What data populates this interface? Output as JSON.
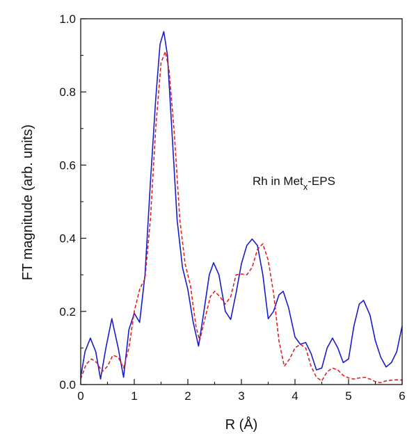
{
  "chart_data": {
    "type": "line",
    "title": "",
    "xlabel": "R (Å)",
    "ylabel": "FT magnitude (arb. units)",
    "xlim": [
      0,
      6
    ],
    "ylim": [
      0,
      1.0
    ],
    "x_ticks": [
      "0",
      "1",
      "2",
      "3",
      "4",
      "5",
      "6"
    ],
    "y_ticks": [
      "0.0",
      "0.2",
      "0.4",
      "0.6",
      "0.8",
      "1.0"
    ],
    "annotation": {
      "main": "Rh in Met",
      "sub": "x",
      "tail": "-EPS"
    },
    "grid": false,
    "legend": "none",
    "series": [
      {
        "style": "solid",
        "color": "#1a1acc",
        "x": [
          0,
          0.08,
          0.18,
          0.28,
          0.37,
          0.47,
          0.58,
          0.7,
          0.8,
          0.9,
          1.0,
          1.1,
          1.2,
          1.3,
          1.4,
          1.48,
          1.55,
          1.62,
          1.7,
          1.8,
          1.9,
          2.0,
          2.1,
          2.2,
          2.3,
          2.4,
          2.48,
          2.58,
          2.7,
          2.8,
          2.9,
          3.0,
          3.1,
          3.2,
          3.3,
          3.4,
          3.5,
          3.6,
          3.7,
          3.78,
          3.88,
          4.0,
          4.1,
          4.2,
          4.3,
          4.4,
          4.5,
          4.6,
          4.7,
          4.8,
          4.9,
          5.0,
          5.1,
          5.2,
          5.28,
          5.4,
          5.5,
          5.6,
          5.7,
          5.8,
          5.9,
          6.0
        ],
        "y": [
          0.02,
          0.09,
          0.127,
          0.09,
          0.015,
          0.1,
          0.18,
          0.1,
          0.02,
          0.15,
          0.195,
          0.17,
          0.3,
          0.55,
          0.78,
          0.93,
          0.965,
          0.9,
          0.7,
          0.45,
          0.32,
          0.26,
          0.17,
          0.105,
          0.2,
          0.3,
          0.333,
          0.3,
          0.2,
          0.178,
          0.25,
          0.33,
          0.38,
          0.398,
          0.38,
          0.3,
          0.18,
          0.2,
          0.245,
          0.255,
          0.21,
          0.13,
          0.11,
          0.115,
          0.085,
          0.04,
          0.045,
          0.1,
          0.127,
          0.1,
          0.06,
          0.07,
          0.16,
          0.22,
          0.23,
          0.19,
          0.12,
          0.075,
          0.048,
          0.06,
          0.09,
          0.16
        ]
      },
      {
        "style": "dashed",
        "color": "#e02020",
        "x": [
          0,
          0.1,
          0.2,
          0.3,
          0.4,
          0.5,
          0.6,
          0.7,
          0.8,
          0.9,
          1.0,
          1.1,
          1.2,
          1.3,
          1.4,
          1.5,
          1.58,
          1.65,
          1.75,
          1.85,
          1.95,
          2.05,
          2.15,
          2.22,
          2.32,
          2.42,
          2.5,
          2.6,
          2.7,
          2.8,
          2.9,
          3.0,
          3.1,
          3.2,
          3.3,
          3.4,
          3.5,
          3.6,
          3.7,
          3.8,
          3.9,
          4.0,
          4.1,
          4.2,
          4.3,
          4.4,
          4.5,
          4.6,
          4.7,
          4.8,
          4.9,
          5.0,
          5.1,
          5.2,
          5.3,
          5.4,
          5.5,
          5.6,
          5.7,
          5.8,
          5.9,
          6.0
        ],
        "y": [
          0.015,
          0.055,
          0.07,
          0.06,
          0.035,
          0.05,
          0.08,
          0.075,
          0.045,
          0.1,
          0.2,
          0.26,
          0.29,
          0.45,
          0.7,
          0.88,
          0.91,
          0.86,
          0.68,
          0.45,
          0.33,
          0.27,
          0.16,
          0.12,
          0.18,
          0.24,
          0.255,
          0.24,
          0.22,
          0.24,
          0.3,
          0.302,
          0.3,
          0.32,
          0.37,
          0.385,
          0.34,
          0.25,
          0.12,
          0.05,
          0.07,
          0.1,
          0.11,
          0.1,
          0.05,
          0.02,
          0.01,
          0.035,
          0.045,
          0.04,
          0.025,
          0.018,
          0.015,
          0.018,
          0.02,
          0.015,
          0.008,
          0.005,
          0.01,
          0.012,
          0.013,
          0.012
        ]
      }
    ]
  }
}
